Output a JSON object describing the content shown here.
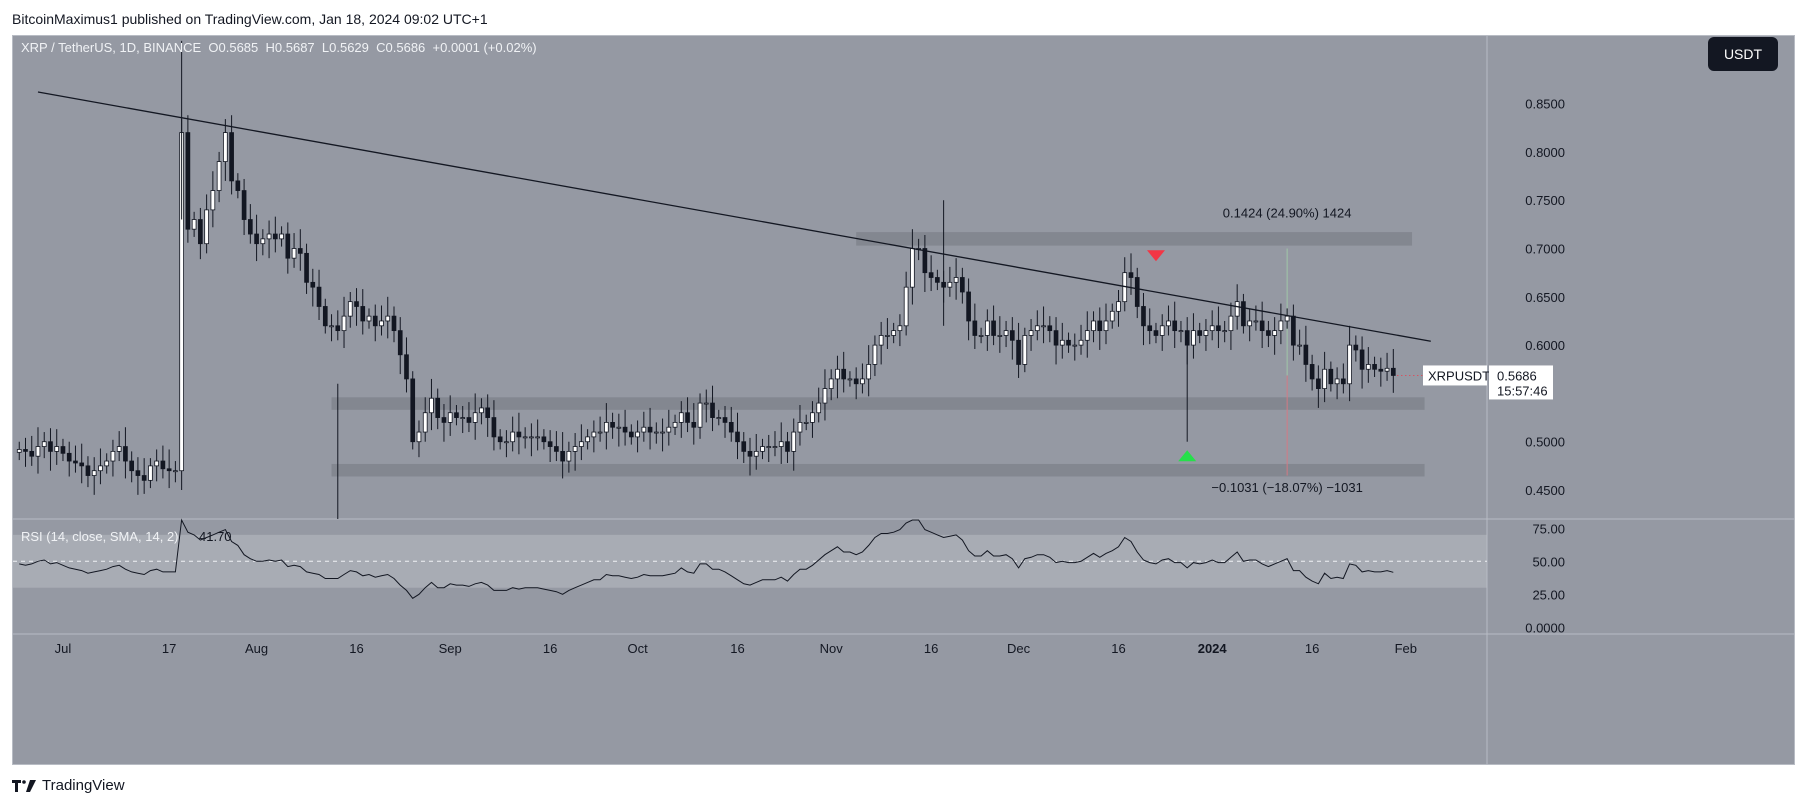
{
  "publisher": "BitcoinMaximus1 published on TradingView.com, Jan 18, 2024 09:02 UTC+1",
  "logo_text": "TradingView",
  "currency_button": "USDT",
  "colors": {
    "panel_bg": "#9599a3",
    "rsi_band": "#a8acb4",
    "up_candle": "#ffffff",
    "down_candle": "#131722",
    "red_marker": "#f23645",
    "green_marker": "#26e04a",
    "zone": "#80848d"
  },
  "chart_data": {
    "type": "candlestick",
    "symbol_line": {
      "name": "XRP / TetherUS, 1D, BINANCE",
      "O_label": "O",
      "O": "0.5685",
      "H_label": "H",
      "H": "0.5687",
      "L_label": "L",
      "L": "0.5629",
      "C_label": "C",
      "C": "0.5686",
      "change": "+0.0001 (+0.02%)"
    },
    "y_range": [
      0.42,
      0.92
    ],
    "y_ticks": [
      "0.8500",
      "0.8000",
      "0.7500",
      "0.7000",
      "0.6500",
      "0.6000",
      "0.5000",
      "0.4500"
    ],
    "x_ticks": [
      "Jul",
      "17",
      "Aug",
      "16",
      "Sep",
      "16",
      "Oct",
      "16",
      "Nov",
      "16",
      "Dec",
      "16",
      "2024",
      "16",
      "Feb"
    ],
    "x_tick_days": [
      0,
      17,
      31,
      47,
      62,
      78,
      92,
      108,
      123,
      139,
      153,
      169,
      184,
      200,
      215
    ],
    "day_range": [
      -8,
      228
    ],
    "start_day": -7,
    "closes": [
      0.492,
      0.49,
      0.485,
      0.495,
      0.5,
      0.49,
      0.495,
      0.488,
      0.48,
      0.478,
      0.475,
      0.465,
      0.47,
      0.475,
      0.48,
      0.49,
      0.495,
      0.48,
      0.47,
      0.465,
      0.46,
      0.475,
      0.48,
      0.472,
      0.47,
      0.47,
      0.82,
      0.72,
      0.73,
      0.705,
      0.74,
      0.76,
      0.79,
      0.82,
      0.77,
      0.76,
      0.73,
      0.715,
      0.705,
      0.71,
      0.715,
      0.71,
      0.715,
      0.69,
      0.7,
      0.695,
      0.665,
      0.66,
      0.64,
      0.62,
      0.62,
      0.615,
      0.63,
      0.645,
      0.64,
      0.625,
      0.63,
      0.62,
      0.625,
      0.63,
      0.615,
      0.59,
      0.565,
      0.5,
      0.51,
      0.53,
      0.545,
      0.525,
      0.52,
      0.53,
      0.525,
      0.525,
      0.52,
      0.53,
      0.535,
      0.525,
      0.505,
      0.5,
      0.5,
      0.51,
      0.505,
      0.505,
      0.505,
      0.505,
      0.5,
      0.495,
      0.49,
      0.48,
      0.49,
      0.495,
      0.5,
      0.505,
      0.51,
      0.51,
      0.52,
      0.515,
      0.515,
      0.51,
      0.505,
      0.51,
      0.515,
      0.51,
      0.51,
      0.51,
      0.515,
      0.52,
      0.53,
      0.52,
      0.515,
      0.54,
      0.54,
      0.525,
      0.525,
      0.52,
      0.51,
      0.5,
      0.49,
      0.485,
      0.49,
      0.495,
      0.495,
      0.495,
      0.5,
      0.49,
      0.51,
      0.52,
      0.52,
      0.53,
      0.54,
      0.555,
      0.565,
      0.575,
      0.565,
      0.565,
      0.56,
      0.565,
      0.58,
      0.6,
      0.61,
      0.61,
      0.615,
      0.62,
      0.66,
      0.7,
      0.7,
      0.675,
      0.67,
      0.665,
      0.66,
      0.665,
      0.67,
      0.655,
      0.625,
      0.61,
      0.61,
      0.625,
      0.61,
      0.61,
      0.615,
      0.605,
      0.58,
      0.61,
      0.615,
      0.62,
      0.62,
      0.615,
      0.6,
      0.605,
      0.6,
      0.6,
      0.605,
      0.615,
      0.625,
      0.615,
      0.625,
      0.635,
      0.645,
      0.675,
      0.67,
      0.64,
      0.62,
      0.615,
      0.61,
      0.62,
      0.625,
      0.615,
      0.615,
      0.6,
      0.615,
      0.61,
      0.615,
      0.62,
      0.615,
      0.615,
      0.63,
      0.645,
      0.62,
      0.625,
      0.625,
      0.615,
      0.61,
      0.615,
      0.625,
      0.63,
      0.6,
      0.6,
      0.58,
      0.565,
      0.555,
      0.575,
      0.56,
      0.565,
      0.56,
      0.6,
      0.595,
      0.575,
      0.58,
      0.575,
      0.573,
      0.576,
      0.5686
    ],
    "trendline": {
      "from": [
        -4,
        0.862
      ],
      "to": [
        219,
        0.604
      ]
    },
    "zones": [
      {
        "day_from": 127,
        "day_to": 216,
        "low": 0.703,
        "high": 0.717
      },
      {
        "day_from": 43,
        "day_to": 218,
        "low": 0.533,
        "high": 0.546
      },
      {
        "day_from": 43,
        "day_to": 218,
        "low": 0.464,
        "high": 0.477
      }
    ],
    "markers": [
      {
        "type": "triangle-down",
        "day": 175,
        "price": 0.692,
        "color": "#f23645"
      },
      {
        "type": "triangle-up",
        "day": 180,
        "price": 0.486,
        "color": "#26e04a"
      }
    ],
    "measure_up": {
      "label": "0.1424 (24.90%) 1424",
      "day": 196,
      "price": 0.7375
    },
    "measure_down": {
      "label": "−0.1031 (−18.07%) −1031",
      "day": 196,
      "price": 0.453
    },
    "measure_line": {
      "day": 196,
      "low": 0.465,
      "high": 0.5686
    },
    "last_price": {
      "symbol": "XRPUSDT",
      "price": "0.5686",
      "countdown": "15:57:46",
      "value": 0.5686
    },
    "rsi": {
      "label": "RSI (14, close, SMA, 14, 2)",
      "value_label": "41.70",
      "y_range": [
        -5,
        82
      ],
      "y_ticks": [
        "75.00",
        "50.00",
        "25.00",
        "0.0000"
      ],
      "upper": 70,
      "mid": 50,
      "lower": 30,
      "values": [
        48,
        47,
        48,
        50,
        51,
        48,
        49,
        47,
        45,
        44,
        43,
        41,
        42,
        43,
        44,
        46,
        47,
        44,
        42,
        41,
        40,
        43,
        44,
        42,
        42,
        42,
        82,
        72,
        70,
        66,
        68,
        70,
        72,
        74,
        65,
        62,
        55,
        52,
        50,
        50,
        51,
        50,
        51,
        46,
        47,
        46,
        42,
        41,
        40,
        37,
        37,
        37,
        40,
        43,
        42,
        39,
        40,
        38,
        39,
        40,
        37,
        32,
        28,
        22,
        25,
        30,
        34,
        30,
        30,
        33,
        32,
        32,
        31,
        33,
        34,
        32,
        28,
        28,
        28,
        30,
        29,
        30,
        30,
        30,
        29,
        28,
        27,
        25,
        28,
        30,
        32,
        34,
        36,
        36,
        40,
        39,
        39,
        38,
        37,
        38,
        40,
        39,
        39,
        39,
        40,
        41,
        45,
        42,
        41,
        48,
        48,
        44,
        44,
        42,
        39,
        36,
        33,
        32,
        34,
        36,
        36,
        36,
        38,
        35,
        40,
        44,
        44,
        47,
        51,
        55,
        58,
        61,
        57,
        57,
        55,
        57,
        62,
        68,
        71,
        71,
        72,
        74,
        79,
        84,
        82,
        74,
        72,
        70,
        68,
        69,
        70,
        66,
        58,
        54,
        54,
        58,
        54,
        54,
        55,
        52,
        45,
        52,
        53,
        55,
        55,
        53,
        49,
        50,
        49,
        49,
        50,
        53,
        56,
        53,
        56,
        58,
        61,
        68,
        65,
        57,
        51,
        49,
        48,
        51,
        52,
        49,
        49,
        45,
        49,
        48,
        49,
        51,
        49,
        49,
        53,
        57,
        50,
        51,
        51,
        48,
        46,
        48,
        50,
        52,
        43,
        43,
        38,
        35,
        33,
        41,
        37,
        38,
        37,
        48,
        47,
        42,
        43,
        42,
        42,
        43,
        41.7
      ]
    }
  }
}
